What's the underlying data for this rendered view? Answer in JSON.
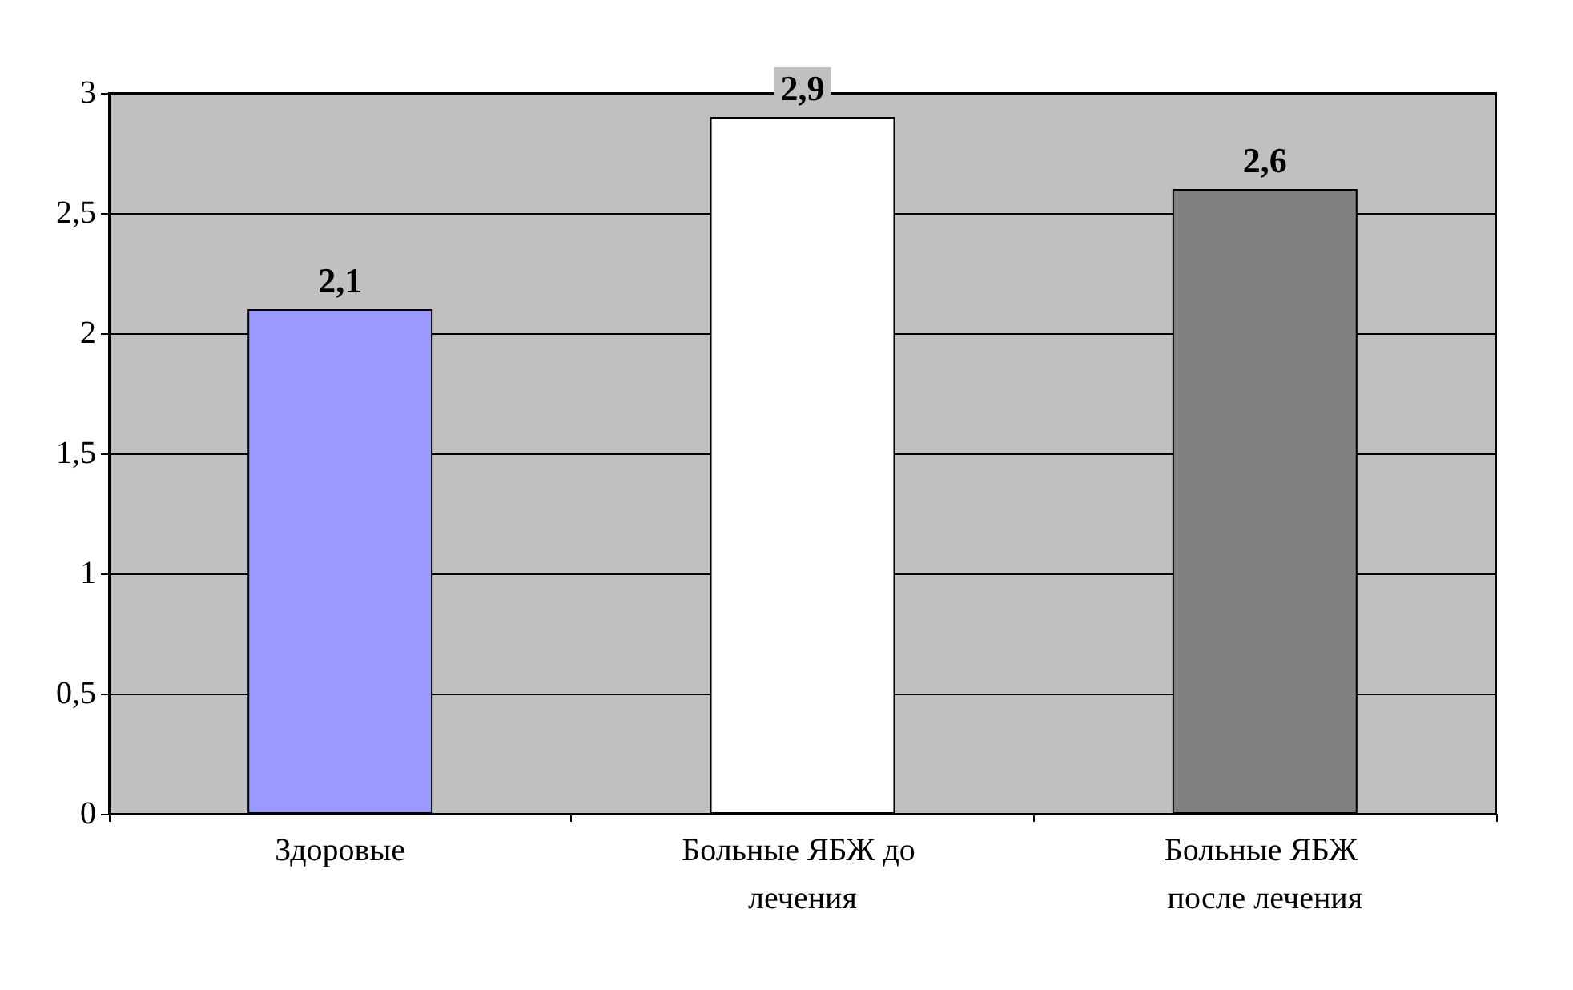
{
  "chart_data": {
    "type": "bar",
    "categories": [
      "Здоровые",
      "Больные ЯБЖ до лечения",
      "Больные ЯБЖ после лечения"
    ],
    "values": [
      2.1,
      2.9,
      2.6
    ],
    "colors": [
      "#9999ff",
      "#ffffff",
      "#808080"
    ],
    "value_labels": [
      "2,1",
      "2,9",
      "2,6"
    ],
    "ylim": [
      0,
      3
    ],
    "yticks": [
      0,
      {
        "value": 0.5,
        "label": "0,5"
      },
      1,
      {
        "value": 1.5,
        "label": "1,5"
      },
      2,
      {
        "value": 2.5,
        "label": "2,5"
      },
      3
    ],
    "grid": "y"
  }
}
